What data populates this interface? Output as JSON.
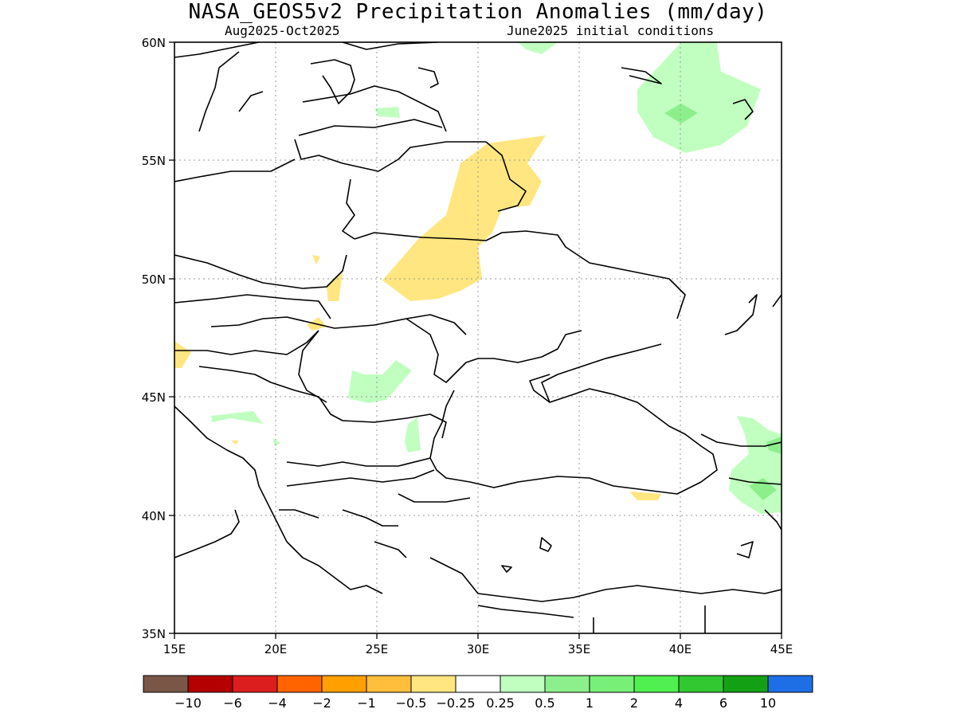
{
  "title": "NASA_GEOS5v2 Precipitation Anomalies (mm/day)",
  "subtitle_left": "Aug2025-Oct2025",
  "subtitle_right": "June2025 initial conditions",
  "map": {
    "lon_range": [
      15,
      45
    ],
    "lat_range": [
      35,
      60
    ],
    "x_ticks": [
      "15E",
      "20E",
      "25E",
      "30E",
      "35E",
      "40E",
      "45E"
    ],
    "y_ticks": [
      "60N",
      "55N",
      "50N",
      "45N",
      "40N",
      "35N"
    ],
    "grid": "dotted",
    "regions": [
      {
        "name": "dry-band-ukraine-belarus",
        "class": "-0.5..-0.25",
        "color": "#ffe680"
      },
      {
        "name": "dry-patch-west",
        "class": "-0.5..-0.25",
        "color": "#ffe680"
      },
      {
        "name": "dry-patch-carpathian",
        "class": "-0.5..-0.25",
        "color": "#ffe680"
      },
      {
        "name": "dry-patch-turkey-north",
        "class": "-0.5..-0.25",
        "color": "#ffe680"
      },
      {
        "name": "wet-russia-north",
        "class": "0.25..0.5",
        "color": "#c0ffc0"
      },
      {
        "name": "wet-russia-core",
        "class": "0.5..1",
        "color": "#8cef8c"
      },
      {
        "name": "wet-romania",
        "class": "0.25..0.5",
        "color": "#c0ffc0"
      },
      {
        "name": "wet-croatia",
        "class": "0.25..0.5",
        "color": "#c0ffc0"
      },
      {
        "name": "wet-bulgaria",
        "class": "0.25..0.5",
        "color": "#c0ffc0"
      },
      {
        "name": "wet-caucasus",
        "class": "0.25..0.5",
        "color": "#c0ffc0"
      },
      {
        "name": "wet-caucasus-core",
        "class": "0.5..1",
        "color": "#8cef8c"
      },
      {
        "name": "wet-baltic",
        "class": "0.25..0.5",
        "color": "#c0ffc0"
      },
      {
        "name": "wet-north-top",
        "class": "0.25..0.5",
        "color": "#c0ffc0"
      }
    ]
  },
  "colorbar": {
    "colors": [
      "#7a5646",
      "#b40000",
      "#dc1e1e",
      "#ff6400",
      "#ffa000",
      "#ffbe3c",
      "#ffe680",
      "#ffffff",
      "#c0ffc0",
      "#8cef8c",
      "#78f078",
      "#50f050",
      "#32c832",
      "#14a014",
      "#1e6ee6"
    ],
    "labels": [
      "−10",
      "−6",
      "−4",
      "−2",
      "−1",
      "−0.5",
      "−0.25",
      "0.25",
      "0.5",
      "1",
      "2",
      "4",
      "6",
      "10"
    ]
  }
}
